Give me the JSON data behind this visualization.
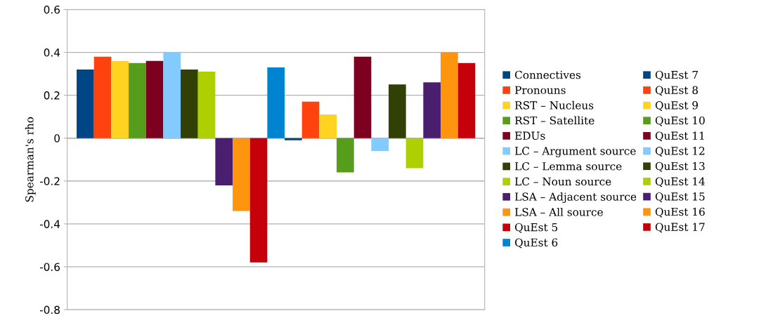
{
  "chart_data": {
    "type": "bar",
    "ylabel": "Spearman's rho",
    "categories": [
      null
    ],
    "ylim": [
      -0.8,
      0.6
    ],
    "yticks": [
      {
        "value": -0.8,
        "label": "-0.8"
      },
      {
        "value": -0.6,
        "label": "-0.6"
      },
      {
        "value": -0.4,
        "label": "-0.4"
      },
      {
        "value": -0.2,
        "label": "-0.2"
      },
      {
        "value": 0,
        "label": "0"
      },
      {
        "value": 0.2,
        "label": "0.2"
      },
      {
        "value": 0.4,
        "label": "0.4"
      },
      {
        "value": 0.6,
        "label": "0.6"
      }
    ],
    "grid": "y",
    "legend": "right",
    "tick_labels": "y",
    "series": [
      {
        "name": "Connectives",
        "color": "#004586",
        "values": [
          0.32
        ]
      },
      {
        "name": "Pronouns",
        "color": "#ff420e",
        "values": [
          0.38
        ]
      },
      {
        "name": "RST – Nucleus",
        "color": "#ffd320",
        "values": [
          0.36
        ]
      },
      {
        "name": "RST – Satellite",
        "color": "#579d1c",
        "values": [
          0.35
        ]
      },
      {
        "name": "EDUs",
        "color": "#7e0021",
        "values": [
          0.36
        ]
      },
      {
        "name": "LC – Argument source",
        "color": "#83caff",
        "values": [
          0.4
        ]
      },
      {
        "name": "LC – Lemma source",
        "color": "#314004",
        "values": [
          0.32
        ]
      },
      {
        "name": "LC – Noun source",
        "color": "#aecf00",
        "values": [
          0.31
        ]
      },
      {
        "name": "LSA – Adjacent source",
        "color": "#4b1f6f",
        "values": [
          -0.22
        ]
      },
      {
        "name": "LSA – All source",
        "color": "#ff950e",
        "values": [
          -0.34
        ]
      },
      {
        "name": "QuEst 5",
        "color": "#c5000b",
        "values": [
          -0.58
        ]
      },
      {
        "name": "QuEst 6",
        "color": "#0084d1",
        "values": [
          0.33
        ]
      },
      {
        "name": "QuEst 7",
        "color": "#004586",
        "values": [
          -0.01
        ]
      },
      {
        "name": "QuEst 8",
        "color": "#ff420e",
        "values": [
          0.17
        ]
      },
      {
        "name": "QuEst 9",
        "color": "#ffd320",
        "values": [
          0.11
        ]
      },
      {
        "name": "QuEst 10",
        "color": "#579d1c",
        "values": [
          -0.16
        ]
      },
      {
        "name": "QuEst 11",
        "color": "#7e0021",
        "values": [
          0.38
        ]
      },
      {
        "name": "QuEst 12",
        "color": "#83caff",
        "values": [
          -0.06
        ]
      },
      {
        "name": "QuEst 13",
        "color": "#314004",
        "values": [
          0.25
        ]
      },
      {
        "name": "QuEst 14",
        "color": "#aecf00",
        "values": [
          -0.14
        ]
      },
      {
        "name": "QuEst 15",
        "color": "#4b1f6f",
        "values": [
          0.26
        ]
      },
      {
        "name": "QuEst 16",
        "color": "#ff950e",
        "values": [
          0.4
        ]
      },
      {
        "name": "QuEst 17",
        "color": "#c5000b",
        "values": [
          0.35
        ]
      }
    ]
  }
}
